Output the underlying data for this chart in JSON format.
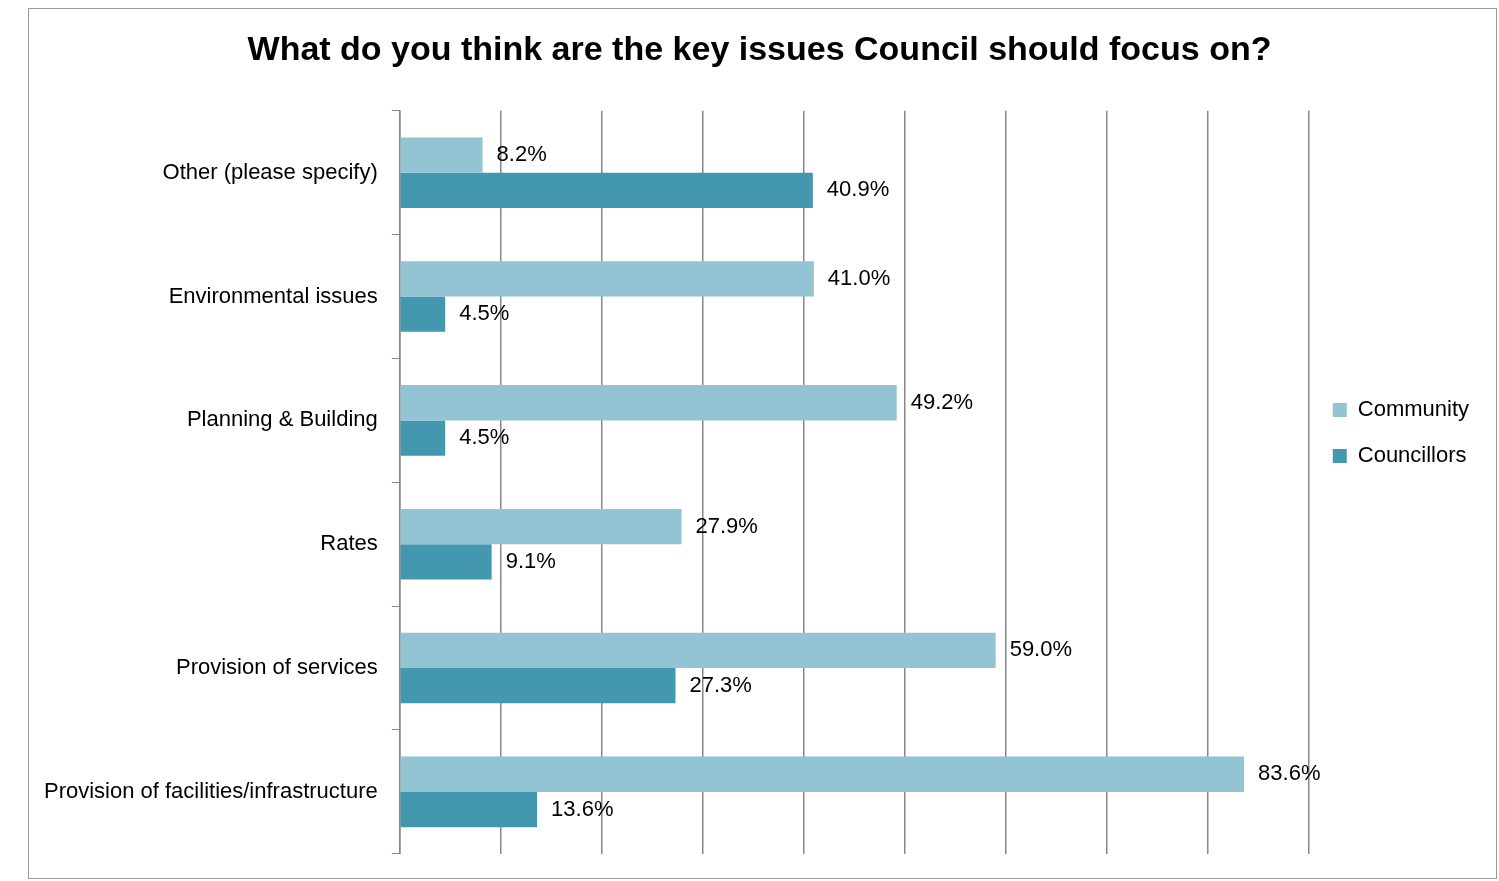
{
  "chart_data": {
    "type": "bar",
    "orientation": "horizontal",
    "title": "What do you think are the key issues Council should focus on?",
    "categories": [
      "Other (please specify)",
      "Environmental issues",
      "Planning & Building",
      "Rates",
      "Provision of services",
      "Provision of facilities/infrastructure"
    ],
    "series": [
      {
        "name": "Community",
        "color": "#92c4d4",
        "values": [
          8.2,
          41.0,
          49.2,
          27.9,
          59.0,
          83.6
        ],
        "value_labels": [
          "8.2%",
          "41.0%",
          "49.2%",
          "27.9%",
          "59.0%",
          "83.6%"
        ]
      },
      {
        "name": "Councillors",
        "color": "#4398b0",
        "values": [
          40.9,
          4.5,
          4.5,
          9.1,
          27.3,
          13.6
        ],
        "value_labels": [
          "40.9%",
          "4.5%",
          "4.5%",
          "9.1%",
          "27.3%",
          "13.6%"
        ]
      }
    ],
    "xlim": [
      0,
      90
    ],
    "xticks": [
      {
        "value": 0,
        "label": null
      },
      {
        "value": 10,
        "label": null
      },
      {
        "value": 20,
        "label": null
      },
      {
        "value": 30,
        "label": null
      },
      {
        "value": 40,
        "label": null
      },
      {
        "value": 50,
        "label": null
      },
      {
        "value": 60,
        "label": null
      },
      {
        "value": 70,
        "label": null
      },
      {
        "value": 80,
        "label": null
      },
      {
        "value": 90,
        "label": null
      }
    ],
    "tick_labels": "y",
    "grid": "x",
    "legend": "right"
  }
}
